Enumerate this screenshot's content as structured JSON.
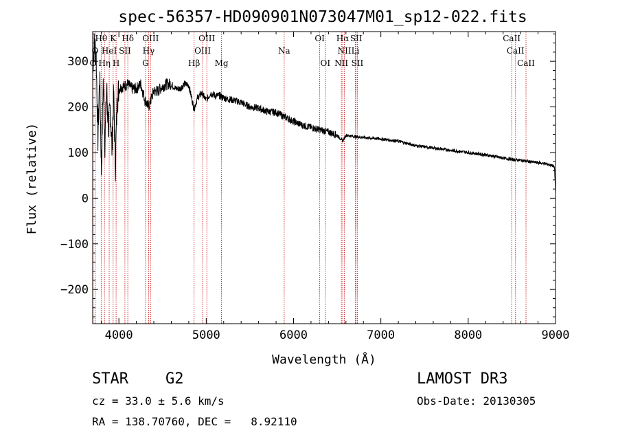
{
  "chart_data": {
    "type": "line",
    "title": "spec-56357-HD090901N073047M01_sp12-022.fits",
    "xlabel": "Wavelength (Å)",
    "ylabel": "Flux (relative)",
    "xlim": [
      3700,
      9000
    ],
    "ylim": [
      -275,
      365
    ],
    "x_ticks": [
      4000,
      5000,
      6000,
      7000,
      8000,
      9000
    ],
    "y_ticks": [
      -200,
      -100,
      0,
      100,
      200,
      300
    ],
    "series": [
      {
        "name": "spectrum",
        "x": [
          3700,
          3720,
          3740,
          3760,
          3780,
          3800,
          3820,
          3840,
          3860,
          3880,
          3900,
          3920,
          3940,
          3960,
          3980,
          4000,
          4050,
          4100,
          4150,
          4200,
          4250,
          4300,
          4340,
          4400,
          4450,
          4500,
          4550,
          4600,
          4650,
          4700,
          4750,
          4800,
          4861,
          4900,
          4950,
          5000,
          5050,
          5100,
          5150,
          5200,
          5300,
          5400,
          5500,
          5600,
          5700,
          5800,
          5900,
          6000,
          6100,
          6200,
          6300,
          6400,
          6500,
          6563,
          6600,
          6700,
          6800,
          7000,
          7200,
          7400,
          7600,
          7800,
          8000,
          8200,
          8400,
          8500,
          8600,
          8700,
          8800,
          8900,
          8980,
          8990,
          9000
        ],
        "y": [
          290,
          340,
          310,
          130,
          270,
          60,
          255,
          120,
          240,
          150,
          200,
          110,
          230,
          70,
          215,
          240,
          245,
          250,
          240,
          240,
          250,
          215,
          200,
          235,
          235,
          245,
          250,
          250,
          240,
          240,
          250,
          248,
          195,
          220,
          230,
          215,
          230,
          225,
          225,
          220,
          215,
          210,
          200,
          197,
          190,
          188,
          178,
          168,
          160,
          155,
          150,
          145,
          138,
          125,
          138,
          135,
          133,
          130,
          125,
          115,
          110,
          105,
          100,
          95,
          88,
          85,
          83,
          80,
          78,
          75,
          70,
          62,
          10
        ]
      }
    ],
    "line_labels": [
      {
        "text": "Hθ",
        "w": 3797,
        "row": 0
      },
      {
        "text": "K",
        "w": 3934,
        "row": 0
      },
      {
        "text": "Hδ",
        "w": 4102,
        "row": 0
      },
      {
        "text": "OIII",
        "w": 4363,
        "row": 0
      },
      {
        "text": "OIII",
        "w": 5007,
        "row": 0
      },
      {
        "text": "OI",
        "w": 6300,
        "row": 0
      },
      {
        "text": "Hα",
        "w": 6563,
        "row": 0
      },
      {
        "text": "SII",
        "w": 6717,
        "row": 0
      },
      {
        "text": "CaII",
        "w": 8498,
        "row": 0
      },
      {
        "text": "O",
        "w": 3727,
        "row": 1
      },
      {
        "text": "HeI",
        "w": 3889,
        "row": 1
      },
      {
        "text": "SII",
        "w": 4069,
        "row": 1
      },
      {
        "text": "Hγ",
        "w": 4340,
        "row": 1
      },
      {
        "text": "OIII",
        "w": 4959,
        "row": 1
      },
      {
        "text": "Na",
        "w": 5893,
        "row": 1
      },
      {
        "text": "NII",
        "w": 6583,
        "row": 1
      },
      {
        "text": "Li",
        "w": 6708,
        "row": 1
      },
      {
        "text": "CaII",
        "w": 8542,
        "row": 1
      },
      {
        "text": "O",
        "w": 3704,
        "row": 2
      },
      {
        "text": "Hη",
        "w": 3835,
        "row": 2
      },
      {
        "text": "H",
        "w": 3968,
        "row": 2
      },
      {
        "text": "G",
        "w": 4305,
        "row": 2
      },
      {
        "text": "Hβ",
        "w": 4861,
        "row": 2
      },
      {
        "text": "Mg",
        "w": 5175,
        "row": 2
      },
      {
        "text": "OI",
        "w": 6364,
        "row": 2
      },
      {
        "text": "NII",
        "w": 6548,
        "row": 2
      },
      {
        "text": "SII",
        "w": 6731,
        "row": 2
      },
      {
        "text": "CaII",
        "w": 8662,
        "row": 2
      }
    ],
    "line_color": "#cc0000",
    "grid": false,
    "legend": "none"
  },
  "info": {
    "object_class": "STAR",
    "subclass": "G2",
    "survey": "LAMOST DR3",
    "cz": "cz = 33.0 ± 5.6 km/s",
    "obs_date": "Obs-Date: 20130305",
    "radec": "RA = 138.70760, DEC =   8.92110"
  }
}
